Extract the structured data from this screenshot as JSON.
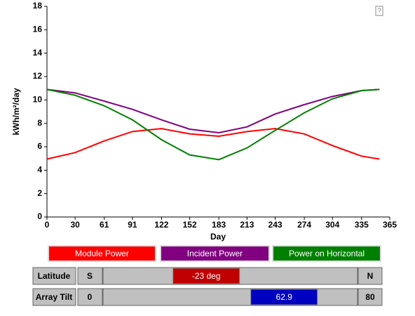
{
  "chart_data": {
    "type": "line",
    "xlabel": "Day",
    "ylabel": "kWh/m²/day",
    "x": [
      0,
      30,
      61,
      91,
      122,
      152,
      183,
      213,
      243,
      274,
      304,
      335,
      354
    ],
    "series": [
      {
        "name": "Module Power",
        "color": "#ff0000",
        "values": [
          4.95,
          5.5,
          6.5,
          7.3,
          7.55,
          7.1,
          6.9,
          7.3,
          7.55,
          7.1,
          6.1,
          5.2,
          4.95
        ]
      },
      {
        "name": "Incident Power",
        "color": "#800080",
        "values": [
          10.9,
          10.6,
          9.9,
          9.2,
          8.3,
          7.5,
          7.2,
          7.7,
          8.8,
          9.6,
          10.3,
          10.8,
          10.9
        ]
      },
      {
        "name": "Power on Horizontal",
        "color": "#008000",
        "values": [
          10.9,
          10.4,
          9.5,
          8.3,
          6.6,
          5.3,
          4.9,
          5.9,
          7.4,
          8.9,
          10.1,
          10.8,
          10.9
        ]
      }
    ],
    "xlim": [
      0,
      365
    ],
    "xticks": [
      0,
      30,
      61,
      91,
      122,
      152,
      183,
      213,
      243,
      274,
      304,
      335,
      365
    ],
    "ylim": [
      0,
      18
    ],
    "yticks": [
      0,
      2,
      4,
      6,
      8,
      10,
      12,
      14,
      16,
      18
    ]
  },
  "help": "?",
  "controls": [
    {
      "label": "Latitude",
      "min_label": "S",
      "max_label": "N",
      "range": [
        -90,
        90
      ],
      "value": -23,
      "value_label": "-23 deg",
      "color": "#c00000"
    },
    {
      "label": "Array Tilt",
      "min_label": "0",
      "max_label": "80",
      "range": [
        0,
        80
      ],
      "value": 62.9,
      "value_label": "62.9",
      "color": "#0000c0"
    }
  ]
}
